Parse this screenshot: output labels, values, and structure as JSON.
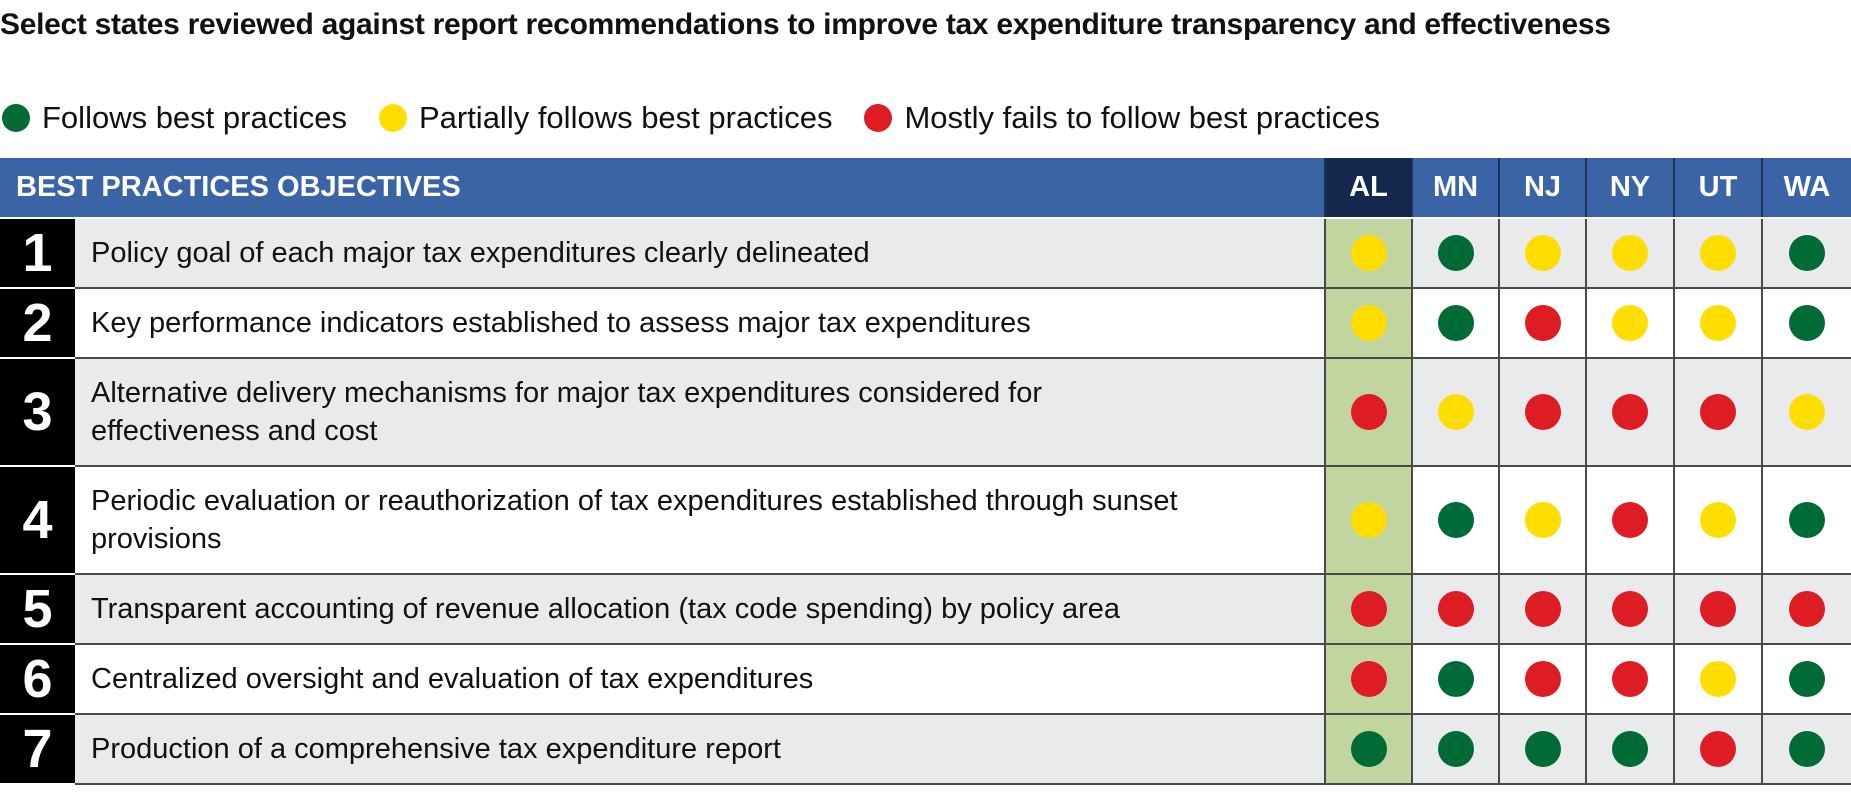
{
  "title": "Select states reviewed against report recommendations to improve tax expenditure transparency and effectiveness",
  "legend": [
    {
      "label": "Follows best practices",
      "status": "green",
      "color": "#006b35"
    },
    {
      "label": "Partially follows best practices",
      "status": "yellow",
      "color": "#ffdd00"
    },
    {
      "label": "Mostly fails to follow best practices",
      "status": "red",
      "color": "#dd1c23"
    }
  ],
  "colors": {
    "green": "#006b35",
    "yellow": "#ffdd00",
    "red": "#dd1c23",
    "header_blue": "#3a64a6",
    "header_highlight": "#13284d",
    "column_highlight": "#c1d5a1"
  },
  "chart_data": {
    "type": "table",
    "title": "Select states reviewed against report recommendations to improve tax expenditure transparency and effectiveness",
    "header_label": "BEST PRACTICES OBJECTIVES",
    "highlighted_state": "AL",
    "states": [
      "AL",
      "MN",
      "NJ",
      "NY",
      "UT",
      "WA"
    ],
    "rows": [
      {
        "num": "1",
        "objective": "Policy goal of each major tax expenditures clearly delineated",
        "ratings": [
          "yellow",
          "green",
          "yellow",
          "yellow",
          "yellow",
          "green"
        ]
      },
      {
        "num": "2",
        "objective": "Key performance indicators established to assess major tax expenditures",
        "ratings": [
          "yellow",
          "green",
          "red",
          "yellow",
          "yellow",
          "green"
        ]
      },
      {
        "num": "3",
        "objective": "Alternative delivery mechanisms for major tax expenditures considered for effectiveness and cost",
        "ratings": [
          "red",
          "yellow",
          "red",
          "red",
          "red",
          "yellow"
        ]
      },
      {
        "num": "4",
        "objective": "Periodic evaluation or reauthorization of tax expenditures established through sunset provisions",
        "ratings": [
          "yellow",
          "green",
          "yellow",
          "red",
          "yellow",
          "green"
        ]
      },
      {
        "num": "5",
        "objective": "Transparent accounting of revenue allocation (tax code spending) by policy area",
        "ratings": [
          "red",
          "red",
          "red",
          "red",
          "red",
          "red"
        ]
      },
      {
        "num": "6",
        "objective": "Centralized oversight and evaluation of tax expenditures",
        "ratings": [
          "red",
          "green",
          "red",
          "red",
          "yellow",
          "green"
        ]
      },
      {
        "num": "7",
        "objective": "Production of a comprehensive tax expenditure report",
        "ratings": [
          "green",
          "green",
          "green",
          "green",
          "red",
          "green"
        ]
      }
    ]
  }
}
